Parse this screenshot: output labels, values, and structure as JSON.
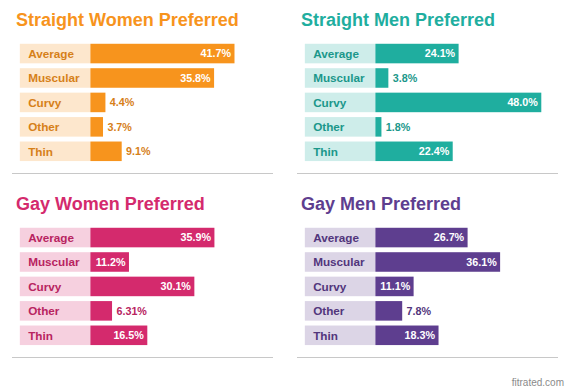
{
  "chart_data": [
    {
      "type": "bar",
      "title": "Straight Women Preferred",
      "orientation": "horizontal",
      "categories": [
        "Average",
        "Muscular",
        "Curvy",
        "Other",
        "Thin"
      ],
      "values": [
        41.7,
        35.8,
        4.4,
        3.7,
        9.1
      ],
      "value_labels": [
        "41.7%",
        "35.8%",
        "4.4%",
        "3.7%",
        "9.1%"
      ],
      "color": "#f7941d",
      "xlim": [
        0,
        50
      ],
      "data_labels": true,
      "tick_labels": "y"
    },
    {
      "type": "bar",
      "title": "Straight Men Preferred",
      "orientation": "horizontal",
      "categories": [
        "Average",
        "Muscular",
        "Curvy",
        "Other",
        "Thin"
      ],
      "values": [
        24.1,
        3.8,
        48.0,
        1.8,
        22.4
      ],
      "value_labels": [
        "24.1%",
        "3.8%",
        "48.0%",
        "1.8%",
        "22.4%"
      ],
      "color": "#1fae9f",
      "xlim": [
        0,
        50
      ],
      "data_labels": true,
      "tick_labels": "y"
    },
    {
      "type": "bar",
      "title": "Gay Women Preferred",
      "orientation": "horizontal",
      "categories": [
        "Average",
        "Muscular",
        "Curvy",
        "Other",
        "Thin"
      ],
      "values": [
        35.9,
        11.2,
        30.1,
        6.31,
        16.5
      ],
      "value_labels": [
        "35.9%",
        "11.2%",
        "30.1%",
        "6.31%",
        "16.5%"
      ],
      "color": "#d42a6d",
      "xlim": [
        0,
        50
      ],
      "data_labels": true,
      "tick_labels": "y"
    },
    {
      "type": "bar",
      "title": "Gay Men Preferred",
      "orientation": "horizontal",
      "categories": [
        "Average",
        "Muscular",
        "Curvy",
        "Other",
        "Thin"
      ],
      "values": [
        26.7,
        36.1,
        11.1,
        7.8,
        18.3
      ],
      "value_labels": [
        "26.7%",
        "36.1%",
        "11.1%",
        "7.8%",
        "18.3%"
      ],
      "color": "#5e3e8f",
      "xlim": [
        0,
        50
      ],
      "data_labels": true,
      "tick_labels": "y"
    }
  ],
  "source": "fitrated.com"
}
